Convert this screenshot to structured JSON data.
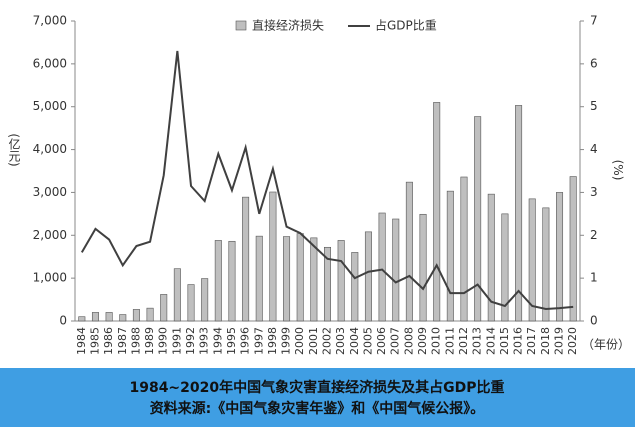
{
  "chart_data": {
    "type": "bar-line",
    "categories": [
      "1984",
      "1985",
      "1986",
      "1987",
      "1988",
      "1989",
      "1990",
      "1991",
      "1992",
      "1993",
      "1994",
      "1995",
      "1996",
      "1997",
      "1998",
      "1999",
      "2000",
      "2001",
      "2002",
      "2003",
      "2004",
      "2005",
      "2006",
      "2007",
      "2008",
      "2009",
      "2010",
      "2011",
      "2012",
      "2013",
      "2014",
      "2015",
      "2016",
      "2017",
      "2018",
      "2019",
      "2020"
    ],
    "series": [
      {
        "name": "直接经济损失",
        "type": "bar",
        "color": "#bfbfbf",
        "values": [
          100,
          200,
          200,
          150,
          270,
          300,
          620,
          1220,
          850,
          990,
          1880,
          1860,
          2890,
          1980,
          3010,
          1970,
          2040,
          1940,
          1720,
          1880,
          1600,
          2080,
          2520,
          2380,
          3240,
          2490,
          5100,
          3030,
          3360,
          4770,
          2960,
          2500,
          5030,
          2850,
          2640,
          3000,
          3370
        ]
      },
      {
        "name": "占GDP比重",
        "type": "line",
        "axis": "y2",
        "color": "#404040",
        "values": [
          1.6,
          2.15,
          1.9,
          1.3,
          1.75,
          1.85,
          3.4,
          6.3,
          3.15,
          2.8,
          3.9,
          3.05,
          4.05,
          2.5,
          3.55,
          2.2,
          2.05,
          1.75,
          1.45,
          1.4,
          1.0,
          1.15,
          1.2,
          0.9,
          1.05,
          0.75,
          1.3,
          0.65,
          0.65,
          0.85,
          0.45,
          0.35,
          0.7,
          0.35,
          0.28,
          0.3,
          0.33
        ]
      }
    ],
    "ylim": [
      0,
      7000
    ],
    "yticks": [
      0,
      {
        "value": 1000,
        "label": "1,000"
      },
      {
        "value": 2000,
        "label": "2,000"
      },
      {
        "value": 3000,
        "label": "3,000"
      },
      {
        "value": 4000,
        "label": "4,000"
      },
      {
        "value": 5000,
        "label": "5,000"
      },
      {
        "value": 6000,
        "label": "6,000"
      },
      {
        "value": 7000,
        "label": "7,000"
      }
    ],
    "y2lim": [
      0,
      7
    ],
    "y2ticks": [
      0,
      1,
      2,
      3,
      4,
      5,
      6,
      7
    ],
    "ylabel": "(亿元)",
    "y2label": "(%)",
    "xlabel": "（年份）",
    "caption": [
      "1984~2020年中国气象灾害直接经济损失及其占GDP比重",
      "资料来源:《中国气象灾害年鉴》和《中国气候公报》。"
    ]
  }
}
